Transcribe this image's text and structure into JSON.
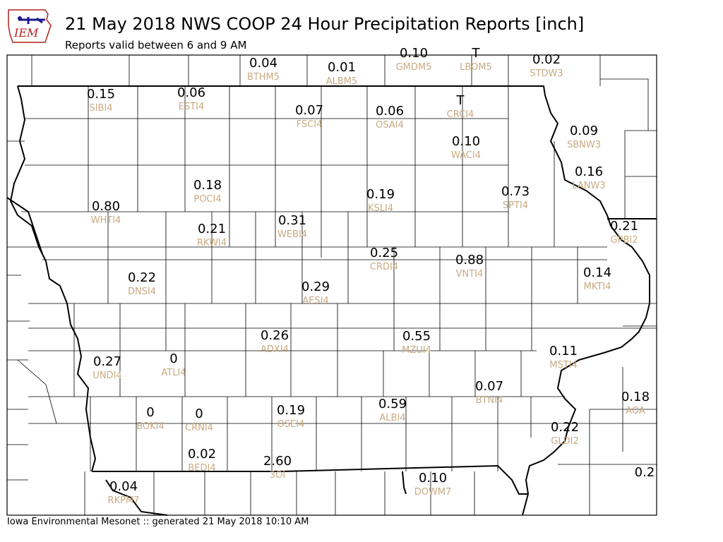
{
  "header": {
    "logo_text": "IEM",
    "title": "21 May 2018 NWS COOP 24 Hour Precipitation Reports [inch]",
    "subtitle": "Reports valid between 6 and 9 AM"
  },
  "footer": {
    "text": "Iowa Environmental Mesonet :: generated 21 May 2018 10:10 AM"
  },
  "colors": {
    "value": "#000000",
    "station": "#c8aa82",
    "border": "#000000",
    "county": "#000000"
  },
  "stations": [
    {
      "id": "BTHM5",
      "value": "0.04"
    },
    {
      "id": "ALBM5",
      "value": "0.01"
    },
    {
      "id": "GMDM5",
      "value": "0.10"
    },
    {
      "id": "LBOM5",
      "value": "T"
    },
    {
      "id": "STDW3",
      "value": "0.02"
    },
    {
      "id": "SIBI4",
      "value": "0.15"
    },
    {
      "id": "ESTI4",
      "value": "0.06"
    },
    {
      "id": "FSCI4",
      "value": "0.07"
    },
    {
      "id": "OSAI4",
      "value": "0.06"
    },
    {
      "id": "CRCI4",
      "value": "T"
    },
    {
      "id": "SBNW3",
      "value": "0.09"
    },
    {
      "id": "WACI4",
      "value": "0.10"
    },
    {
      "id": "LANW3",
      "value": "0.16"
    },
    {
      "id": "POCI4",
      "value": "0.18"
    },
    {
      "id": "KSLI4",
      "value": "0.19"
    },
    {
      "id": "SPTI4",
      "value": "0.73"
    },
    {
      "id": "WHTI4",
      "value": "0.80"
    },
    {
      "id": "RKWI4",
      "value": "0.21"
    },
    {
      "id": "WEBI4",
      "value": "0.31"
    },
    {
      "id": "GPBI2",
      "value": "0.21"
    },
    {
      "id": "CRDI4",
      "value": "0.25"
    },
    {
      "id": "VNTI4",
      "value": "0.88"
    },
    {
      "id": "DNSI4",
      "value": "0.22"
    },
    {
      "id": "MKTI4",
      "value": "0.14"
    },
    {
      "id": "AESI4",
      "value": "0.29"
    },
    {
      "id": "ADXI4",
      "value": "0.26"
    },
    {
      "id": "MZUI4",
      "value": "0.55"
    },
    {
      "id": "MSTI4",
      "value": "0.11"
    },
    {
      "id": "UNDI4",
      "value": "0.27"
    },
    {
      "id": "ATLI4",
      "value": "0"
    },
    {
      "id": "BTNI4",
      "value": "0.07"
    },
    {
      "id": "AOA",
      "value": "0.18"
    },
    {
      "id": "BOKI4",
      "value": "0"
    },
    {
      "id": "CRNI4",
      "value": "0"
    },
    {
      "id": "OSEI4",
      "value": "0.19"
    },
    {
      "id": "ALBI4",
      "value": "0.59"
    },
    {
      "id": "GLDI2",
      "value": "0.22"
    },
    {
      "id": "BEDI4",
      "value": "0.02"
    },
    {
      "id": "3OI",
      "value": "2.60"
    },
    {
      "id": "",
      "value": "0.2"
    },
    {
      "id": "DOWM7",
      "value": "0.10"
    },
    {
      "id": "RKPM7",
      "value": "0.04"
    }
  ]
}
